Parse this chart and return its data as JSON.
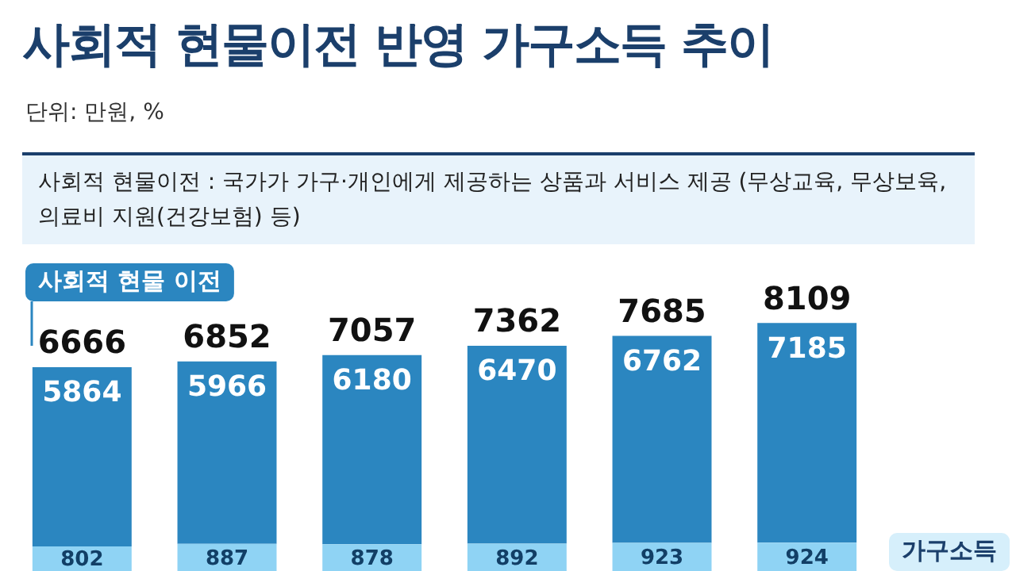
{
  "chart_data": {
    "type": "bar",
    "stacked": true,
    "title": "사회적 현물이전 반영 가구소득 추이",
    "subtitle": "단위: 만원, %",
    "categories": [
      null,
      null,
      null,
      null,
      null,
      null
    ],
    "series": [
      {
        "color": "#8fd3f4",
        "values": [
          802,
          887,
          878,
          892,
          923,
          924
        ]
      },
      {
        "color": "#2b86c0",
        "values": [
          5864,
          5966,
          6180,
          6470,
          6762,
          7185
        ]
      }
    ],
    "totals": [
      "6666",
      "6852",
      "7057",
      "7362",
      "7685",
      "8109"
    ],
    "data_labels": true,
    "legend": false,
    "tick_labels": false,
    "grid": false,
    "annotations": [
      "사회적 현물이전 : 국가가 가구·개인에게 제공하는 상품과 서비스 제공 (무상교육, 무상보육, 의료비 지원(건강보험) 등)",
      "사회적 현물 이전",
      "가구소득"
    ]
  }
}
